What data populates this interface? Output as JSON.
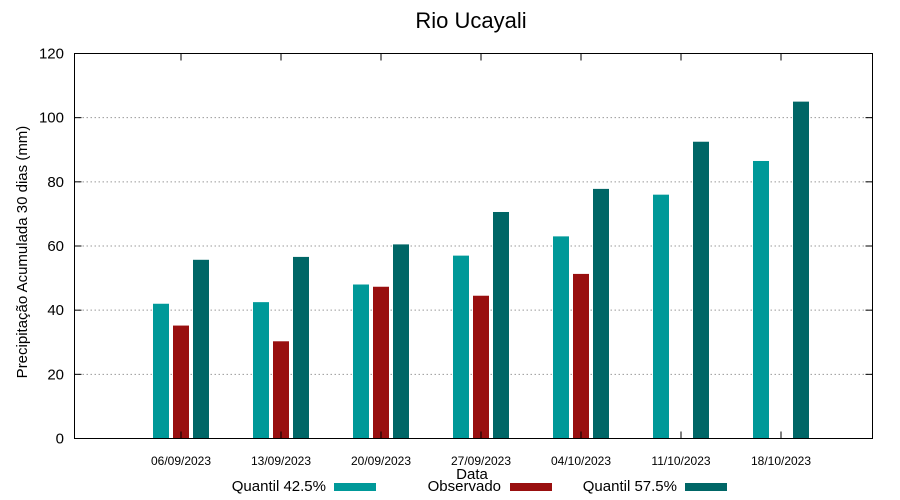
{
  "chart_data": {
    "type": "bar",
    "title": "Rio Ucayali",
    "xlabel": "Data",
    "ylabel": "Precipitação Acumulada 30 dias (mm)",
    "ylim": [
      0,
      120
    ],
    "yticks": [
      0,
      20,
      40,
      60,
      80,
      100,
      120
    ],
    "grid": true,
    "legend_position": "bottom",
    "categories": [
      "06/09/2023",
      "13/09/2023",
      "20/09/2023",
      "27/09/2023",
      "04/10/2023",
      "11/10/2023",
      "18/10/2023"
    ],
    "series": [
      {
        "name": "Quantil 42.5%",
        "color": "#009999",
        "values": [
          42,
          42.5,
          48,
          57,
          63,
          76,
          86.5
        ]
      },
      {
        "name": "Observado",
        "color": "#990f0f",
        "values": [
          35.2,
          30.3,
          47.3,
          44.5,
          51.3,
          null,
          null
        ]
      },
      {
        "name": "Quantil 57.5%",
        "color": "#006666",
        "values": [
          55.7,
          56.6,
          60.5,
          70.6,
          77.8,
          92.5,
          105
        ]
      }
    ]
  }
}
